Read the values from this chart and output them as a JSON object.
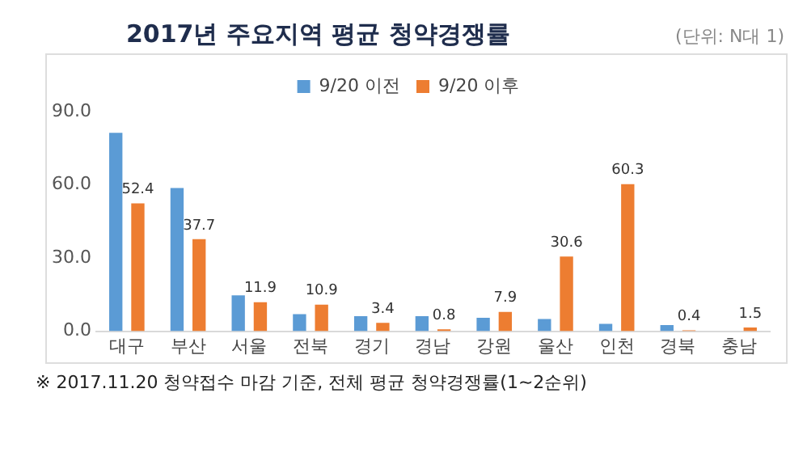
{
  "chart_data": {
    "type": "bar",
    "title": "2017년 주요지역 평균 청약경쟁률",
    "subtitle": "(단위: N대 1)",
    "categories": [
      "대구",
      "부산",
      "서울",
      "전북",
      "경기",
      "경남",
      "강원",
      "울산",
      "인천",
      "경북",
      "충남"
    ],
    "series": [
      {
        "name": "9/20 이전",
        "color": "#5b9bd5",
        "values": [
          81.3,
          58.7,
          14.7,
          7.0,
          6.2,
          6.2,
          5.5,
          5.0,
          3.0,
          2.5,
          null
        ]
      },
      {
        "name": "9/20 이후",
        "color": "#ed7d31",
        "values": [
          52.4,
          37.7,
          11.9,
          10.9,
          3.4,
          0.8,
          7.9,
          30.6,
          60.3,
          0.4,
          1.5
        ],
        "value_labels": [
          "52.4",
          "37.7",
          "11.9",
          "10.9",
          "3.4",
          "0.8",
          "7.9",
          "30.6",
          "60.3",
          "0.4",
          "1.5"
        ]
      }
    ],
    "ylim": [
      0,
      90
    ],
    "yticks": [
      {
        "value": 0,
        "label": "0.0"
      },
      {
        "value": 30,
        "label": "30.0"
      },
      {
        "value": 60,
        "label": "60.0"
      },
      {
        "value": 90,
        "label": "90.0"
      }
    ],
    "grid": false,
    "legend": "top",
    "annotations": [
      "※ 2017.11.20 청약접수 마감 기준, 전체 평균 청약경쟁률(1~2순위)"
    ]
  }
}
